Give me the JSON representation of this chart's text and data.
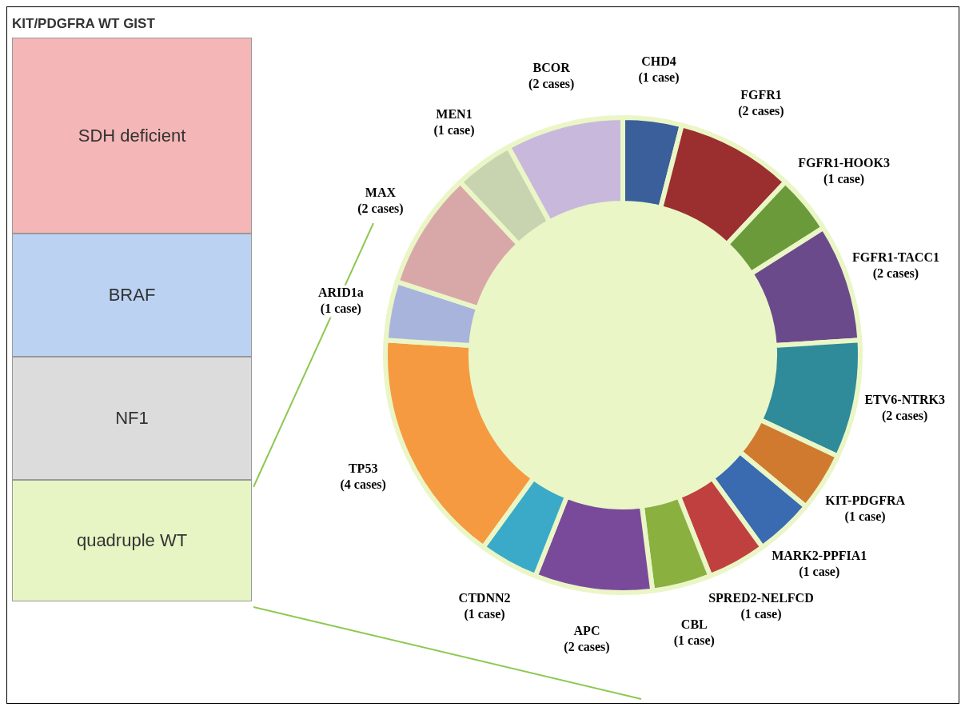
{
  "chart_data": [
    {
      "type": "other",
      "title": "KIT/PDGFRA WT GIST",
      "annotations": [
        "SDH deficient",
        "BRAF",
        "NF1",
        "quadruple WT"
      ]
    },
    {
      "type": "donut",
      "legend": false,
      "categories": [
        "CHD4",
        "FGFR1",
        "FGFR1-HOOK3",
        "FGFR1-TACC1",
        "ETV6-NTRK3",
        "KIT-PDGFRA",
        "MARK2-PPFIA1",
        "SPRED2-NELFCD",
        "CBL",
        "APC",
        "CTDNN2",
        "TP53",
        "ARID1a",
        "MAX",
        "MEN1",
        "BCOR"
      ],
      "values": [
        1,
        2,
        1,
        2,
        2,
        1,
        1,
        1,
        1,
        2,
        1,
        4,
        1,
        2,
        1,
        2
      ],
      "value_labels": [
        "(1 case)",
        "(2 cases)",
        "(1 case)",
        "(2 cases)",
        "(2 cases)",
        "(1 case)",
        "(1 case)",
        "(1 case)",
        "(1 case)",
        "(2 cases)",
        "(1 case)",
        "(4 cases)",
        "(1 case)",
        "(2 cases)",
        "(1 case)",
        "(2 cases)"
      ],
      "colors": [
        "#3a5f9a",
        "#9b2f2f",
        "#6b9a3a",
        "#6a4a8a",
        "#2f8a9a",
        "#d07a30",
        "#3a6ab0",
        "#c04040",
        "#8ab040",
        "#7a4a9a",
        "#3aaac8",
        "#f59a40",
        "#a8b4dc",
        "#d8a8a8",
        "#c8d4b0",
        "#c8b8dc"
      ]
    }
  ]
}
